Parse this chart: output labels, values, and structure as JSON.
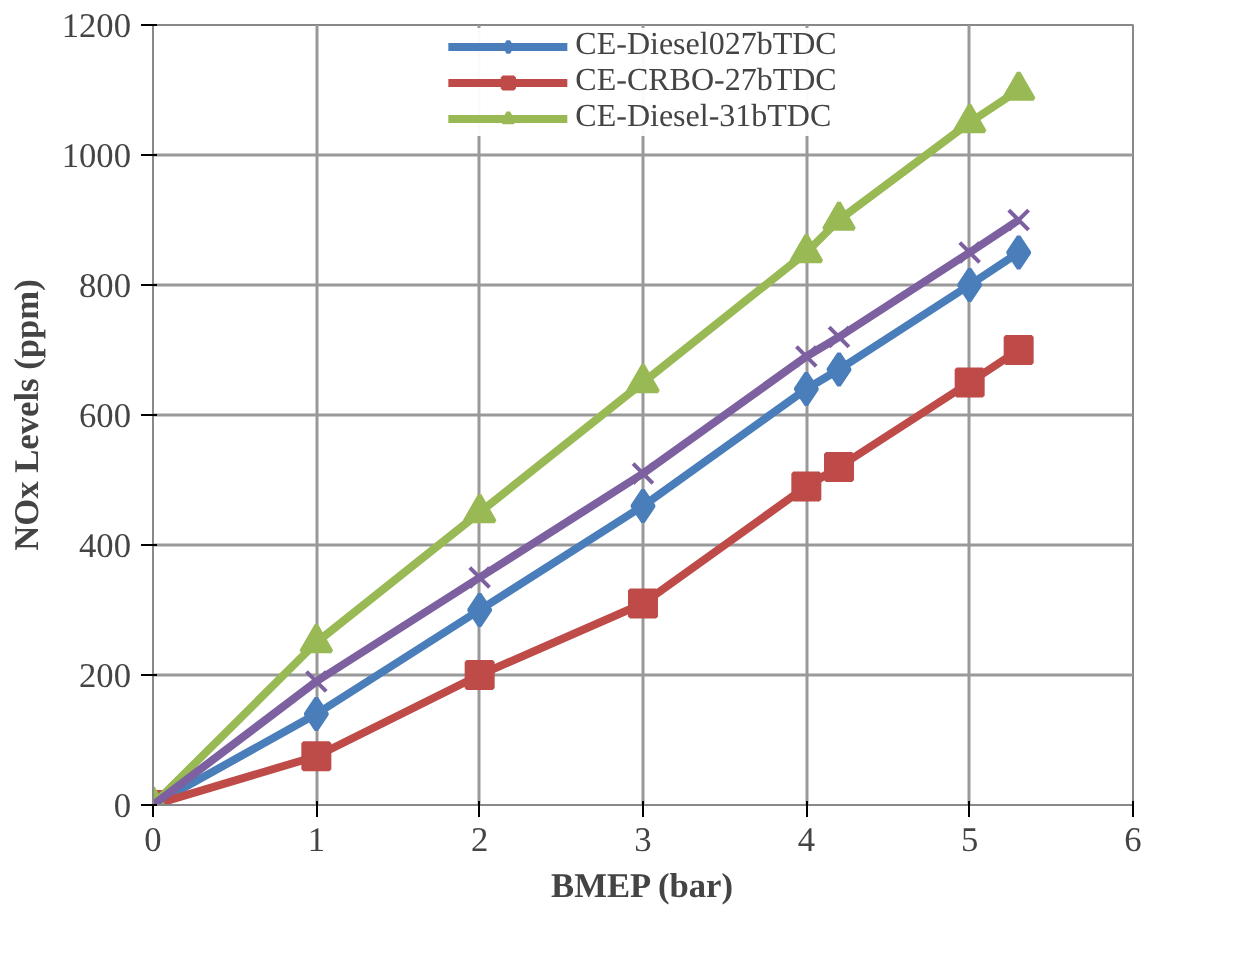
{
  "chart_data": {
    "type": "line",
    "xlabel": "BMEP (bar)",
    "ylabel": "NOx Levels (ppm)",
    "x": [
      0,
      1,
      2,
      3,
      4,
      4.2,
      5,
      5.3
    ],
    "series": [
      {
        "name": "CE-Diesel027bTDC",
        "color": "#4a7ebb",
        "marker": "diamond",
        "values": [
          0,
          140,
          300,
          460,
          640,
          670,
          800,
          850
        ]
      },
      {
        "name": "CE-CRBO-27bTDC",
        "color": "#be4b48",
        "marker": "square",
        "values": [
          0,
          75,
          200,
          310,
          490,
          520,
          650,
          700
        ]
      },
      {
        "name": "CE-Diesel-31bTDC",
        "color": "#98b954",
        "marker": "triangle",
        "values": [
          0,
          250,
          450,
          650,
          850,
          900,
          1050,
          1100
        ]
      },
      {
        "color": "#7d60a0",
        "marker": "cross",
        "values": [
          0,
          190,
          350,
          510,
          690,
          720,
          850,
          900
        ]
      }
    ],
    "xlim": [
      0,
      6
    ],
    "xticks": [
      0,
      1,
      2,
      3,
      4,
      5,
      6
    ],
    "ylim": [
      0,
      1200
    ],
    "yticks": [
      0,
      200,
      400,
      600,
      800,
      1000,
      1200
    ],
    "grid": true,
    "legend": "top"
  }
}
